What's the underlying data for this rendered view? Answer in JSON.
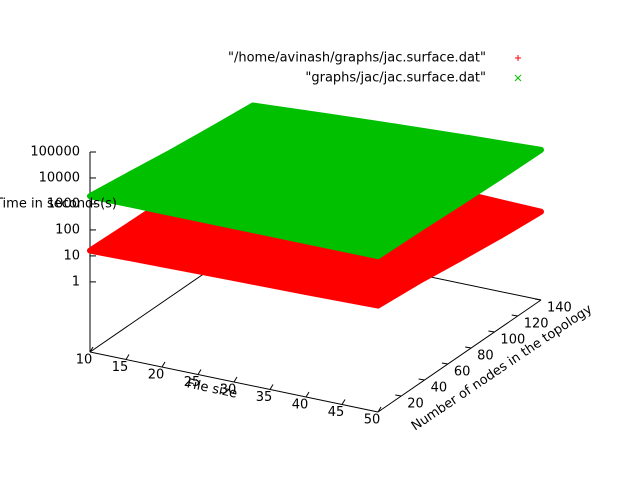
{
  "chart_data": {
    "type": "surface3d",
    "xlabel": "File size",
    "ylabel": "Number of nodes in the topology",
    "zlabel": "Time in seconds(s)",
    "x": [
      10,
      20,
      30,
      40,
      50
    ],
    "y": [
      0,
      35,
      70,
      105,
      140
    ],
    "xlim": [
      10,
      50
    ],
    "ylim": [
      0,
      140
    ],
    "zlim": [
      0.002,
      100000
    ],
    "zlog": true,
    "xticks": [
      10,
      15,
      20,
      25,
      30,
      35,
      40,
      45,
      50
    ],
    "yticks": [
      20,
      40,
      60,
      80,
      100,
      120,
      140
    ],
    "zticks": [
      1,
      10,
      100,
      1000,
      10000,
      100000
    ],
    "series": [
      {
        "name": "\"/home/avinash/graphs/jac.surface.dat\"",
        "color": "#ff0000",
        "marker": "plus",
        "values": [
          [
            16,
            14,
            13,
            11,
            10
          ],
          [
            18,
            15,
            12,
            10,
            9
          ],
          [
            20,
            16,
            12,
            9,
            8
          ],
          [
            22,
            17,
            11,
            8,
            6
          ],
          [
            25,
            18,
            11,
            7,
            5
          ]
        ]
      },
      {
        "name": "\"graphs/jac/jac.surface.dat\"",
        "color": "#00c000",
        "marker": "cross",
        "values": [
          [
            2000,
            1200,
            700,
            450,
            300
          ],
          [
            2000,
            1400,
            900,
            650,
            450
          ],
          [
            2000,
            1500,
            1100,
            800,
            650
          ],
          [
            2000,
            1700,
            1300,
            1000,
            900
          ],
          [
            2000,
            1800,
            1500,
            1300,
            1200
          ]
        ]
      }
    ]
  }
}
